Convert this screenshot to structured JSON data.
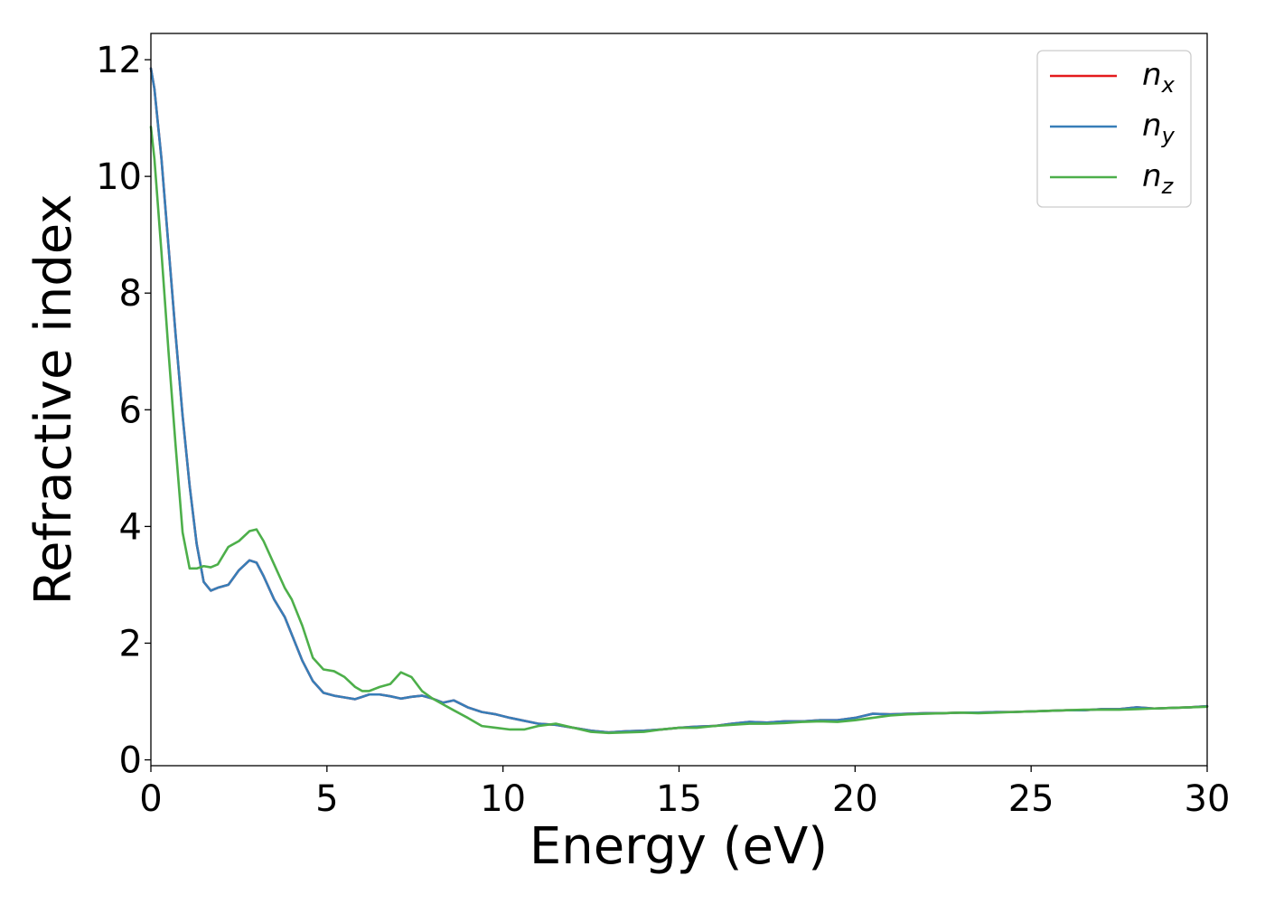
{
  "chart_data": {
    "type": "line",
    "xlabel": "Energy (eV)",
    "ylabel": "Refractive index",
    "xlim": [
      0,
      30
    ],
    "ylim": [
      -0.1,
      12.45
    ],
    "xticks": [
      "0",
      "5",
      "10",
      "15",
      "20",
      "25",
      "30"
    ],
    "yticks": [
      "0",
      "2",
      "4",
      "6",
      "8",
      "10",
      "12"
    ],
    "legend_position": "top-right",
    "grid": false,
    "series": [
      {
        "name": "n_x",
        "color": "#e41a1c",
        "x": [
          0,
          0.1,
          0.3,
          0.5,
          0.7,
          0.9,
          1.1,
          1.3,
          1.5,
          1.7,
          1.9,
          2.2,
          2.5,
          2.8,
          3.0,
          3.2,
          3.5,
          3.8,
          4.0,
          4.3,
          4.6,
          4.9,
          5.2,
          5.5,
          5.8,
          6.0,
          6.2,
          6.5,
          6.8,
          7.1,
          7.4,
          7.7,
          8.0,
          8.3,
          8.6,
          9.0,
          9.4,
          9.8,
          10.2,
          10.6,
          11.0,
          11.5,
          12.0,
          12.5,
          13.0,
          13.5,
          14.0,
          14.5,
          15.0,
          15.5,
          16.0,
          16.5,
          17.0,
          17.5,
          18.0,
          18.5,
          19.0,
          19.5,
          20.0,
          20.5,
          21.0,
          21.5,
          22.0,
          22.5,
          23.0,
          23.5,
          24.0,
          24.5,
          25.0,
          25.5,
          26.0,
          26.5,
          27.0,
          27.5,
          28.0,
          28.5,
          29.0,
          29.5,
          30.0
        ],
        "y": [
          11.85,
          11.5,
          10.3,
          8.8,
          7.3,
          5.9,
          4.7,
          3.7,
          3.05,
          2.9,
          2.95,
          3.0,
          3.25,
          3.42,
          3.38,
          3.15,
          2.75,
          2.45,
          2.15,
          1.7,
          1.35,
          1.15,
          1.1,
          1.07,
          1.04,
          1.08,
          1.12,
          1.12,
          1.09,
          1.05,
          1.08,
          1.1,
          1.05,
          0.98,
          1.02,
          0.9,
          0.82,
          0.78,
          0.72,
          0.67,
          0.62,
          0.6,
          0.55,
          0.5,
          0.47,
          0.49,
          0.5,
          0.52,
          0.55,
          0.57,
          0.58,
          0.62,
          0.65,
          0.64,
          0.66,
          0.66,
          0.68,
          0.68,
          0.72,
          0.79,
          0.78,
          0.79,
          0.8,
          0.8,
          0.81,
          0.81,
          0.82,
          0.82,
          0.83,
          0.84,
          0.85,
          0.85,
          0.87,
          0.87,
          0.9,
          0.88,
          0.89,
          0.9,
          0.92
        ]
      },
      {
        "name": "n_y",
        "color": "#377eb8",
        "x": [
          0,
          0.1,
          0.3,
          0.5,
          0.7,
          0.9,
          1.1,
          1.3,
          1.5,
          1.7,
          1.9,
          2.2,
          2.5,
          2.8,
          3.0,
          3.2,
          3.5,
          3.8,
          4.0,
          4.3,
          4.6,
          4.9,
          5.2,
          5.5,
          5.8,
          6.0,
          6.2,
          6.5,
          6.8,
          7.1,
          7.4,
          7.7,
          8.0,
          8.3,
          8.6,
          9.0,
          9.4,
          9.8,
          10.2,
          10.6,
          11.0,
          11.5,
          12.0,
          12.5,
          13.0,
          13.5,
          14.0,
          14.5,
          15.0,
          15.5,
          16.0,
          16.5,
          17.0,
          17.5,
          18.0,
          18.5,
          19.0,
          19.5,
          20.0,
          20.5,
          21.0,
          21.5,
          22.0,
          22.5,
          23.0,
          23.5,
          24.0,
          24.5,
          25.0,
          25.5,
          26.0,
          26.5,
          27.0,
          27.5,
          28.0,
          28.5,
          29.0,
          29.5,
          30.0
        ],
        "y": [
          11.85,
          11.5,
          10.3,
          8.8,
          7.3,
          5.9,
          4.7,
          3.7,
          3.05,
          2.9,
          2.95,
          3.0,
          3.25,
          3.42,
          3.38,
          3.15,
          2.75,
          2.45,
          2.15,
          1.7,
          1.35,
          1.15,
          1.1,
          1.07,
          1.04,
          1.08,
          1.12,
          1.12,
          1.09,
          1.05,
          1.08,
          1.1,
          1.05,
          0.98,
          1.02,
          0.9,
          0.82,
          0.78,
          0.72,
          0.67,
          0.62,
          0.6,
          0.55,
          0.5,
          0.47,
          0.49,
          0.5,
          0.52,
          0.55,
          0.57,
          0.58,
          0.62,
          0.65,
          0.64,
          0.66,
          0.66,
          0.68,
          0.68,
          0.72,
          0.79,
          0.78,
          0.79,
          0.8,
          0.8,
          0.81,
          0.81,
          0.82,
          0.82,
          0.83,
          0.84,
          0.85,
          0.85,
          0.87,
          0.87,
          0.9,
          0.88,
          0.89,
          0.9,
          0.92
        ]
      },
      {
        "name": "n_z",
        "color": "#4daf4a",
        "x": [
          0,
          0.1,
          0.3,
          0.5,
          0.7,
          0.9,
          1.1,
          1.3,
          1.5,
          1.7,
          1.9,
          2.2,
          2.5,
          2.8,
          3.0,
          3.2,
          3.5,
          3.8,
          4.0,
          4.3,
          4.6,
          4.9,
          5.2,
          5.5,
          5.8,
          6.0,
          6.2,
          6.5,
          6.8,
          7.1,
          7.4,
          7.7,
          8.0,
          8.3,
          8.6,
          9.0,
          9.4,
          9.8,
          10.2,
          10.6,
          11.0,
          11.5,
          12.0,
          12.5,
          13.0,
          13.5,
          14.0,
          14.5,
          15.0,
          15.5,
          16.0,
          16.5,
          17.0,
          17.5,
          18.0,
          18.5,
          19.0,
          19.5,
          20.0,
          20.5,
          21.0,
          21.5,
          22.0,
          22.5,
          23.0,
          23.5,
          24.0,
          24.5,
          25.0,
          25.5,
          26.0,
          26.5,
          27.0,
          27.5,
          28.0,
          28.5,
          29.0,
          29.5,
          30.0
        ],
        "y": [
          10.85,
          10.3,
          8.7,
          7.0,
          5.4,
          3.9,
          3.28,
          3.28,
          3.32,
          3.3,
          3.35,
          3.65,
          3.75,
          3.92,
          3.95,
          3.75,
          3.35,
          2.95,
          2.75,
          2.3,
          1.75,
          1.55,
          1.52,
          1.42,
          1.25,
          1.18,
          1.18,
          1.25,
          1.3,
          1.5,
          1.42,
          1.18,
          1.05,
          0.95,
          0.85,
          0.72,
          0.58,
          0.55,
          0.52,
          0.52,
          0.58,
          0.62,
          0.55,
          0.48,
          0.46,
          0.47,
          0.48,
          0.52,
          0.55,
          0.55,
          0.58,
          0.6,
          0.62,
          0.62,
          0.63,
          0.65,
          0.66,
          0.65,
          0.68,
          0.72,
          0.76,
          0.78,
          0.79,
          0.8,
          0.81,
          0.8,
          0.81,
          0.82,
          0.83,
          0.84,
          0.85,
          0.86,
          0.86,
          0.86,
          0.87,
          0.88,
          0.89,
          0.9,
          0.91
        ]
      }
    ]
  },
  "legend": {
    "items": [
      {
        "base": "n",
        "sub": "x",
        "color": "#e41a1c"
      },
      {
        "base": "n",
        "sub": "y",
        "color": "#377eb8"
      },
      {
        "base": "n",
        "sub": "z",
        "color": "#4daf4a"
      }
    ]
  }
}
